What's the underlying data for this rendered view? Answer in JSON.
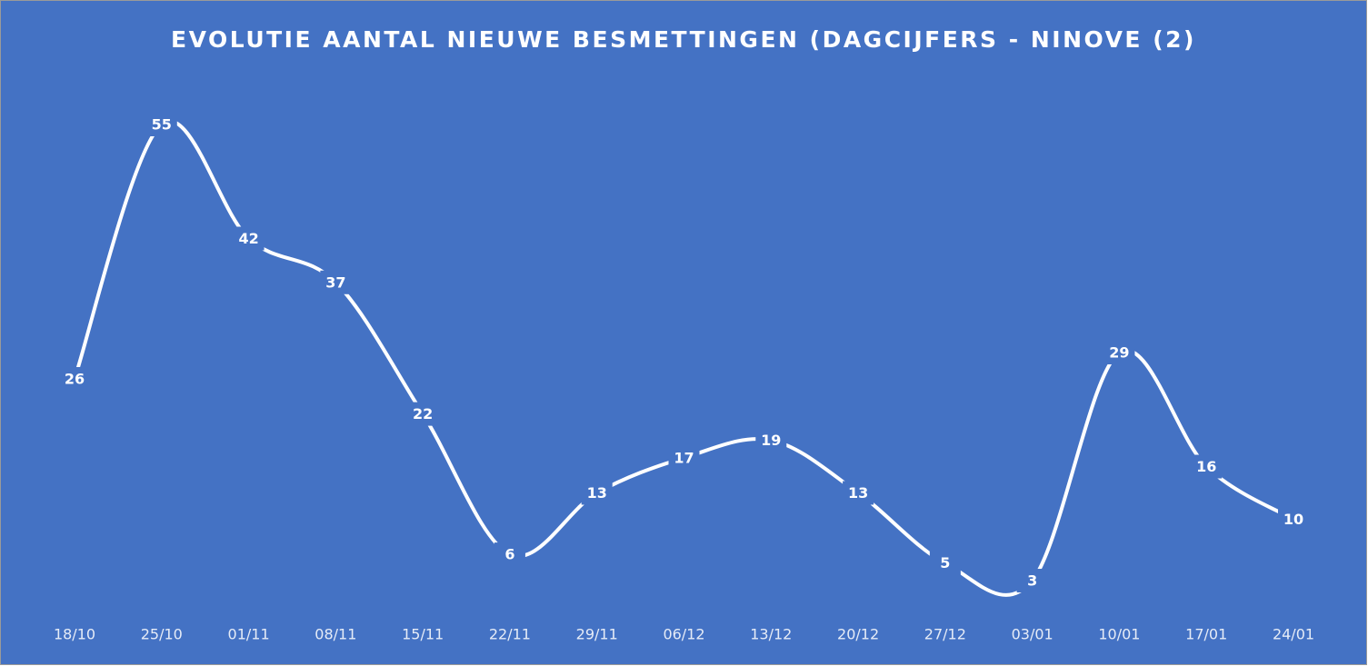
{
  "chart_data": {
    "type": "line",
    "title": "EVOLUTIE AANTAL NIEUWE BESMETTINGEN (DAGCIJFERS - NINOVE (2)",
    "categories": [
      "18/10",
      "25/10",
      "01/11",
      "08/11",
      "15/11",
      "22/11",
      "29/11",
      "06/12",
      "13/12",
      "20/12",
      "27/12",
      "03/01",
      "10/01",
      "17/01",
      "24/01"
    ],
    "values": [
      26,
      55,
      42,
      37,
      22,
      6,
      13,
      17,
      19,
      13,
      5,
      3,
      29,
      16,
      10
    ],
    "color": "#ffffff",
    "background": "#4472c4"
  }
}
